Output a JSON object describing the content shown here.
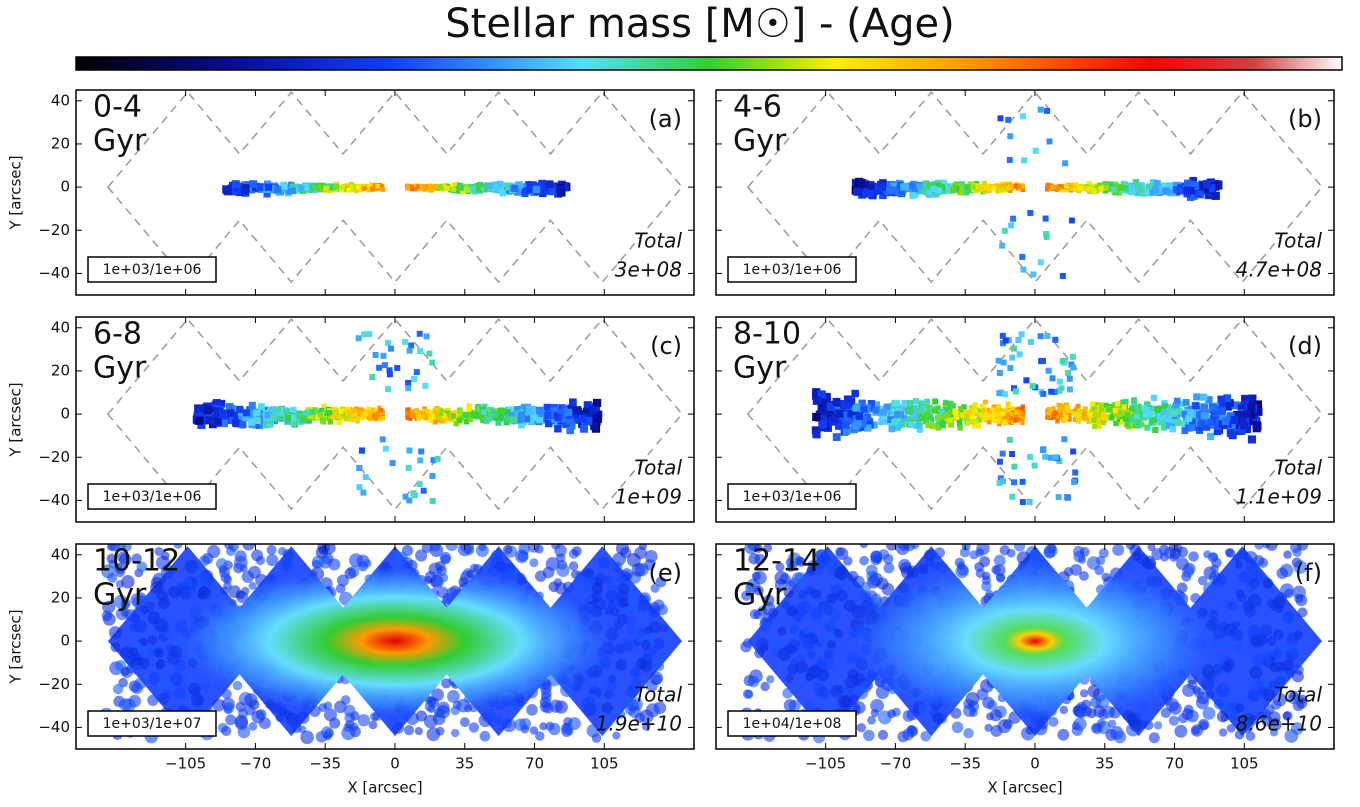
{
  "title": "Stellar mass [M☉] - (Age)",
  "chart_data": [
    {
      "type": "map",
      "age": "0-4",
      "unit": "Gyr",
      "label": "(a)",
      "scale": "1e+03/1e+06",
      "total_label": "Total",
      "total": "3e+08",
      "xlim": [
        -160,
        150
      ],
      "ylim": [
        -50,
        45
      ],
      "yticks": [
        {
          "value": -40,
          "label": "−40"
        },
        {
          "value": -20,
          "label": "−20"
        },
        0,
        20,
        40
      ],
      "xticks": [
        {
          "value": -105,
          "label": "−105"
        },
        {
          "value": -70,
          "label": "−70"
        },
        {
          "value": -35,
          "label": "−35"
        },
        0,
        35,
        70,
        105
      ],
      "ylabel": "Y [arcsec]"
    },
    {
      "type": "map",
      "age": "4-6",
      "unit": "Gyr",
      "label": "(b)",
      "scale": "1e+03/1e+06",
      "total_label": "Total",
      "total": "4.7e+08",
      "xlim": [
        -160,
        150
      ],
      "ylim": [
        -50,
        45
      ],
      "yticks": [
        {
          "value": -40,
          "label": "−40"
        },
        {
          "value": -20,
          "label": "−20"
        },
        0,
        20,
        40
      ],
      "xticks": [
        {
          "value": -105,
          "label": "−105"
        },
        {
          "value": -70,
          "label": "−70"
        },
        {
          "value": -35,
          "label": "−35"
        },
        0,
        35,
        70,
        105
      ]
    },
    {
      "type": "map",
      "age": "6-8",
      "unit": "Gyr",
      "label": "(c)",
      "scale": "1e+03/1e+06",
      "total_label": "Total",
      "total": "1e+09",
      "xlim": [
        -160,
        150
      ],
      "ylim": [
        -50,
        45
      ],
      "yticks": [
        {
          "value": -40,
          "label": "−40"
        },
        {
          "value": -20,
          "label": "−20"
        },
        0,
        20,
        40
      ],
      "xticks": [
        {
          "value": -105,
          "label": "−105"
        },
        {
          "value": -70,
          "label": "−70"
        },
        {
          "value": -35,
          "label": "−35"
        },
        0,
        35,
        70,
        105
      ],
      "ylabel": "Y [arcsec]"
    },
    {
      "type": "map",
      "age": "8-10",
      "unit": "Gyr",
      "label": "(d)",
      "scale": "1e+03/1e+06",
      "total_label": "Total",
      "total": "1.1e+09",
      "xlim": [
        -160,
        150
      ],
      "ylim": [
        -50,
        45
      ],
      "yticks": [
        {
          "value": -40,
          "label": "−40"
        },
        {
          "value": -20,
          "label": "−20"
        },
        0,
        20,
        40
      ],
      "xticks": [
        {
          "value": -105,
          "label": "−105"
        },
        {
          "value": -70,
          "label": "−70"
        },
        {
          "value": -35,
          "label": "−35"
        },
        0,
        35,
        70,
        105
      ]
    },
    {
      "type": "map",
      "age": "10-12",
      "unit": "Gyr",
      "label": "(e)",
      "scale": "1e+03/1e+07",
      "total_label": "Total",
      "total": "1.9e+10",
      "xlim": [
        -160,
        150
      ],
      "ylim": [
        -50,
        45
      ],
      "yticks": [
        {
          "value": -40,
          "label": "−40"
        },
        {
          "value": -20,
          "label": "−20"
        },
        0,
        20,
        40
      ],
      "xticks": [
        {
          "value": -105,
          "label": "−105"
        },
        {
          "value": -70,
          "label": "−70"
        },
        {
          "value": -35,
          "label": "−35"
        },
        0,
        35,
        70,
        105
      ],
      "ylabel": "Y [arcsec]",
      "xlabel": "X [arcsec]"
    },
    {
      "type": "map",
      "age": "12-14",
      "unit": "Gyr",
      "label": "(f)",
      "scale": "1e+04/1e+08",
      "total_label": "Total",
      "total": "8.6e+10",
      "xlim": [
        -160,
        150
      ],
      "ylim": [
        -50,
        45
      ],
      "yticks": [
        {
          "value": -40,
          "label": "−40"
        },
        {
          "value": -20,
          "label": "−20"
        },
        0,
        20,
        40
      ],
      "xticks": [
        {
          "value": -105,
          "label": "−105"
        },
        {
          "value": -70,
          "label": "−70"
        },
        {
          "value": -35,
          "label": "−35"
        },
        0,
        35,
        70,
        105
      ],
      "xlabel": "X [arcsec]"
    }
  ]
}
